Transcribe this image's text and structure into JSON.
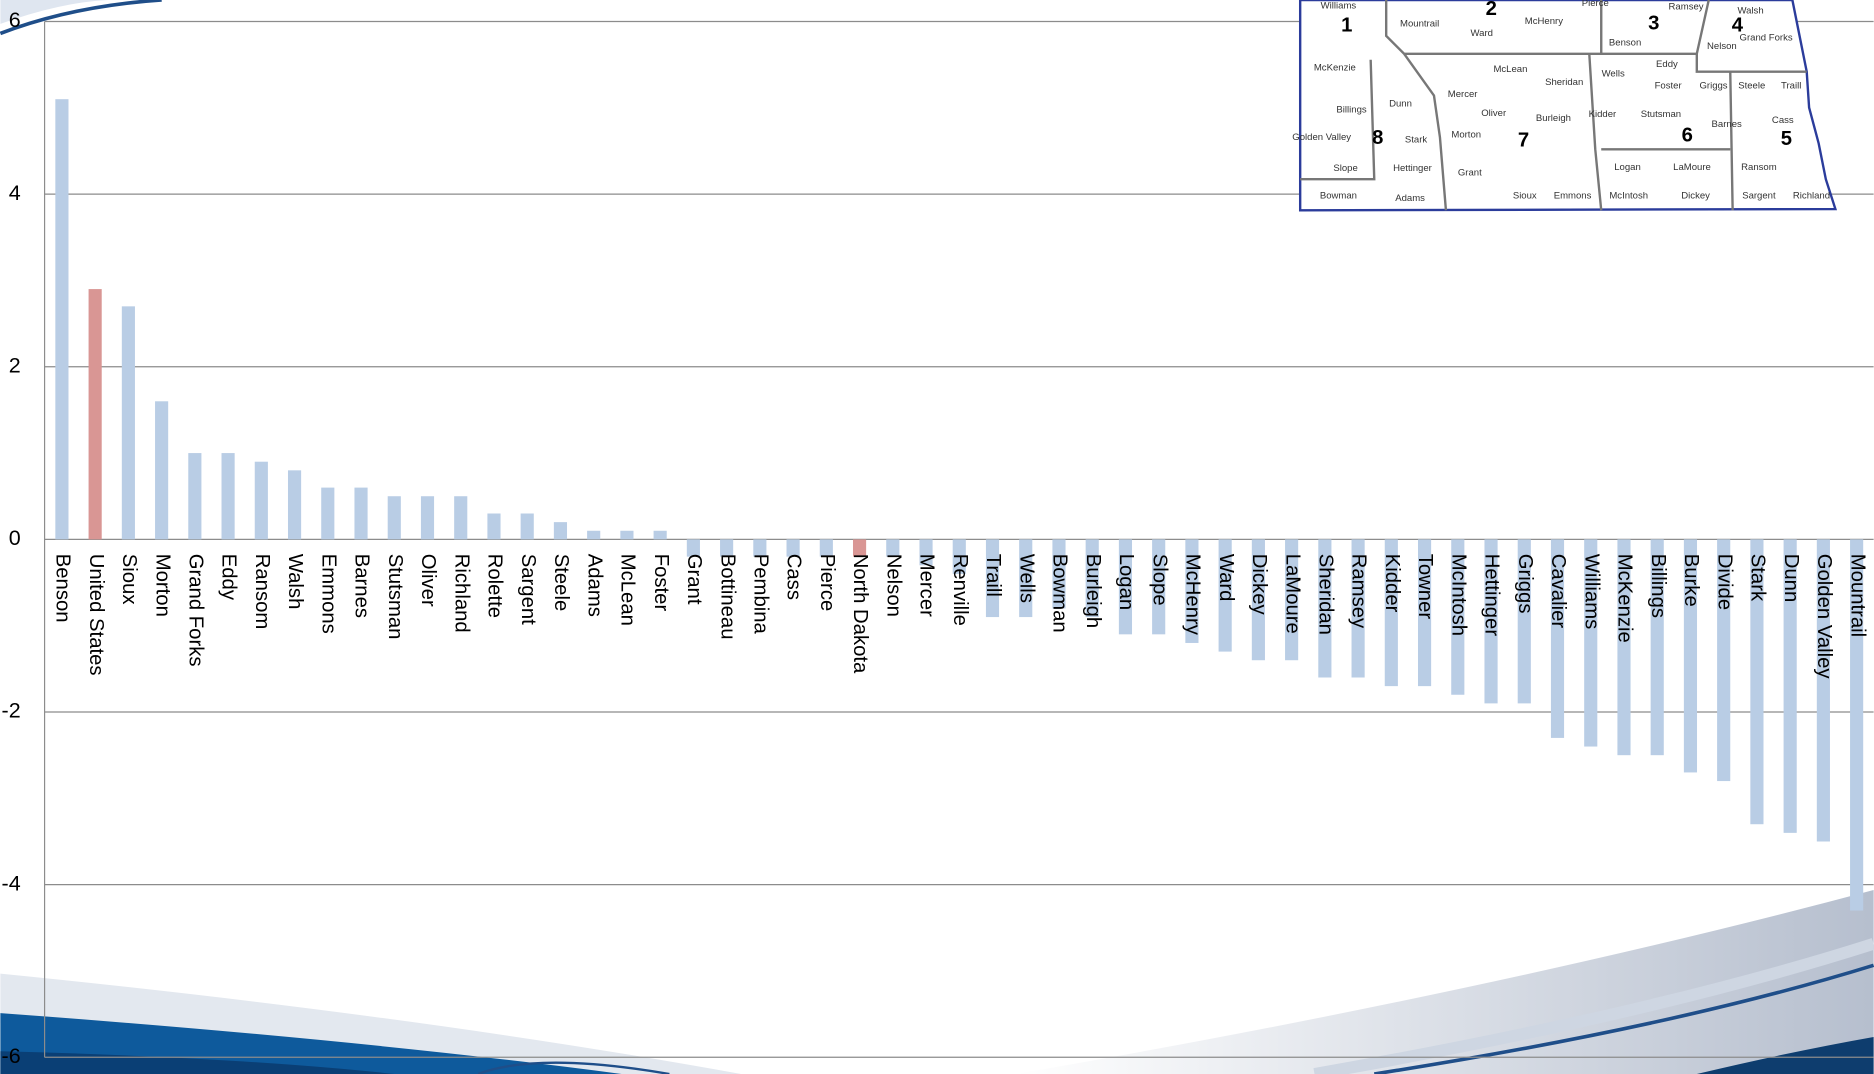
{
  "chart_data": {
    "type": "bar",
    "categories": [
      "Benson",
      "United States",
      "Sioux",
      "Morton",
      "Grand Forks",
      "Eddy",
      "Ransom",
      "Walsh",
      "Emmons",
      "Barnes",
      "Stutsman",
      "Oliver",
      "Richland",
      "Rolette",
      "Sargent",
      "Steele",
      "Adams",
      "McLean",
      "Foster",
      "Grant",
      "Bottineau",
      "Pembina",
      "Cass",
      "Pierce",
      "North Dakota",
      "Nelson",
      "Mercer",
      "Renville",
      "Traill",
      "Wells",
      "Bowman",
      "Burleigh",
      "Logan",
      "Slope",
      "McHenry",
      "Ward",
      "Dickey",
      "LaMoure",
      "Sheridan",
      "Ramsey",
      "Kidder",
      "Towner",
      "McIntosh",
      "Hettinger",
      "Griggs",
      "Cavalier",
      "Williams",
      "McKenzie",
      "Billings",
      "Burke",
      "Divide",
      "Stark",
      "Dunn",
      "Golden Valley",
      "Mountrail"
    ],
    "values": [
      5.1,
      2.9,
      2.7,
      1.6,
      1.0,
      1.0,
      0.9,
      0.8,
      0.6,
      0.6,
      0.5,
      0.5,
      0.5,
      0.3,
      0.3,
      0.2,
      0.1,
      0.1,
      0.1,
      -0.2,
      -0.2,
      -0.2,
      -0.2,
      -0.2,
      -0.2,
      -0.2,
      -0.3,
      -0.4,
      -0.9,
      -0.9,
      -0.8,
      -0.9,
      -1.1,
      -1.1,
      -1.2,
      -1.3,
      -1.4,
      -1.4,
      -1.6,
      -1.6,
      -1.7,
      -1.7,
      -1.8,
      -1.9,
      -1.9,
      -2.3,
      -2.4,
      -2.5,
      -2.5,
      -2.7,
      -2.8,
      -3.3,
      -3.4,
      -3.5,
      -4.3
    ],
    "colors": [
      "#b9cde5",
      "#d99694",
      "#b9cde5",
      "#b9cde5",
      "#b9cde5",
      "#b9cde5",
      "#b9cde5",
      "#b9cde5",
      "#b9cde5",
      "#b9cde5",
      "#b9cde5",
      "#b9cde5",
      "#b9cde5",
      "#b9cde5",
      "#b9cde5",
      "#b9cde5",
      "#b9cde5",
      "#b9cde5",
      "#b9cde5",
      "#b9cde5",
      "#b9cde5",
      "#b9cde5",
      "#b9cde5",
      "#b9cde5",
      "#d99694",
      "#b9cde5",
      "#b9cde5",
      "#b9cde5",
      "#b9cde5",
      "#b9cde5",
      "#b9cde5",
      "#b9cde5",
      "#b9cde5",
      "#b9cde5",
      "#b9cde5",
      "#b9cde5",
      "#b9cde5",
      "#b9cde5",
      "#b9cde5",
      "#b9cde5",
      "#b9cde5",
      "#b9cde5",
      "#b9cde5",
      "#b9cde5",
      "#b9cde5",
      "#b9cde5",
      "#b9cde5",
      "#b9cde5",
      "#b9cde5",
      "#b9cde5",
      "#b9cde5",
      "#b9cde5",
      "#b9cde5",
      "#b9cde5",
      "#b9cde5"
    ],
    "ylim": [
      -6,
      6
    ],
    "yticks": [
      -6,
      -4,
      -2,
      0,
      2,
      4,
      6
    ],
    "grid": true
  },
  "map": {
    "districts": [
      "1",
      "2",
      "3",
      "4",
      "5",
      "6",
      "7",
      "8"
    ],
    "counties": [
      "Williams",
      "Mountrail",
      "Ward",
      "McHenry",
      "Pierce",
      "Ramsey",
      "Walsh",
      "Benson",
      "Nelson",
      "Grand Forks",
      "McKenzie",
      "McLean",
      "Eddy",
      "Wells",
      "Sheridan",
      "Foster",
      "Griggs",
      "Steele",
      "Traill",
      "Dunn",
      "Mercer",
      "Oliver",
      "Burleigh",
      "Kidder",
      "Stutsman",
      "Barnes",
      "Cass",
      "Billings",
      "Golden Valley",
      "Stark",
      "Morton",
      "Slope",
      "Hettinger",
      "Grant",
      "Logan",
      "LaMoure",
      "Ransom",
      "Bowman",
      "Adams",
      "Sioux",
      "Emmons",
      "McIntosh",
      "Dickey",
      "Sargent",
      "Richland"
    ]
  }
}
